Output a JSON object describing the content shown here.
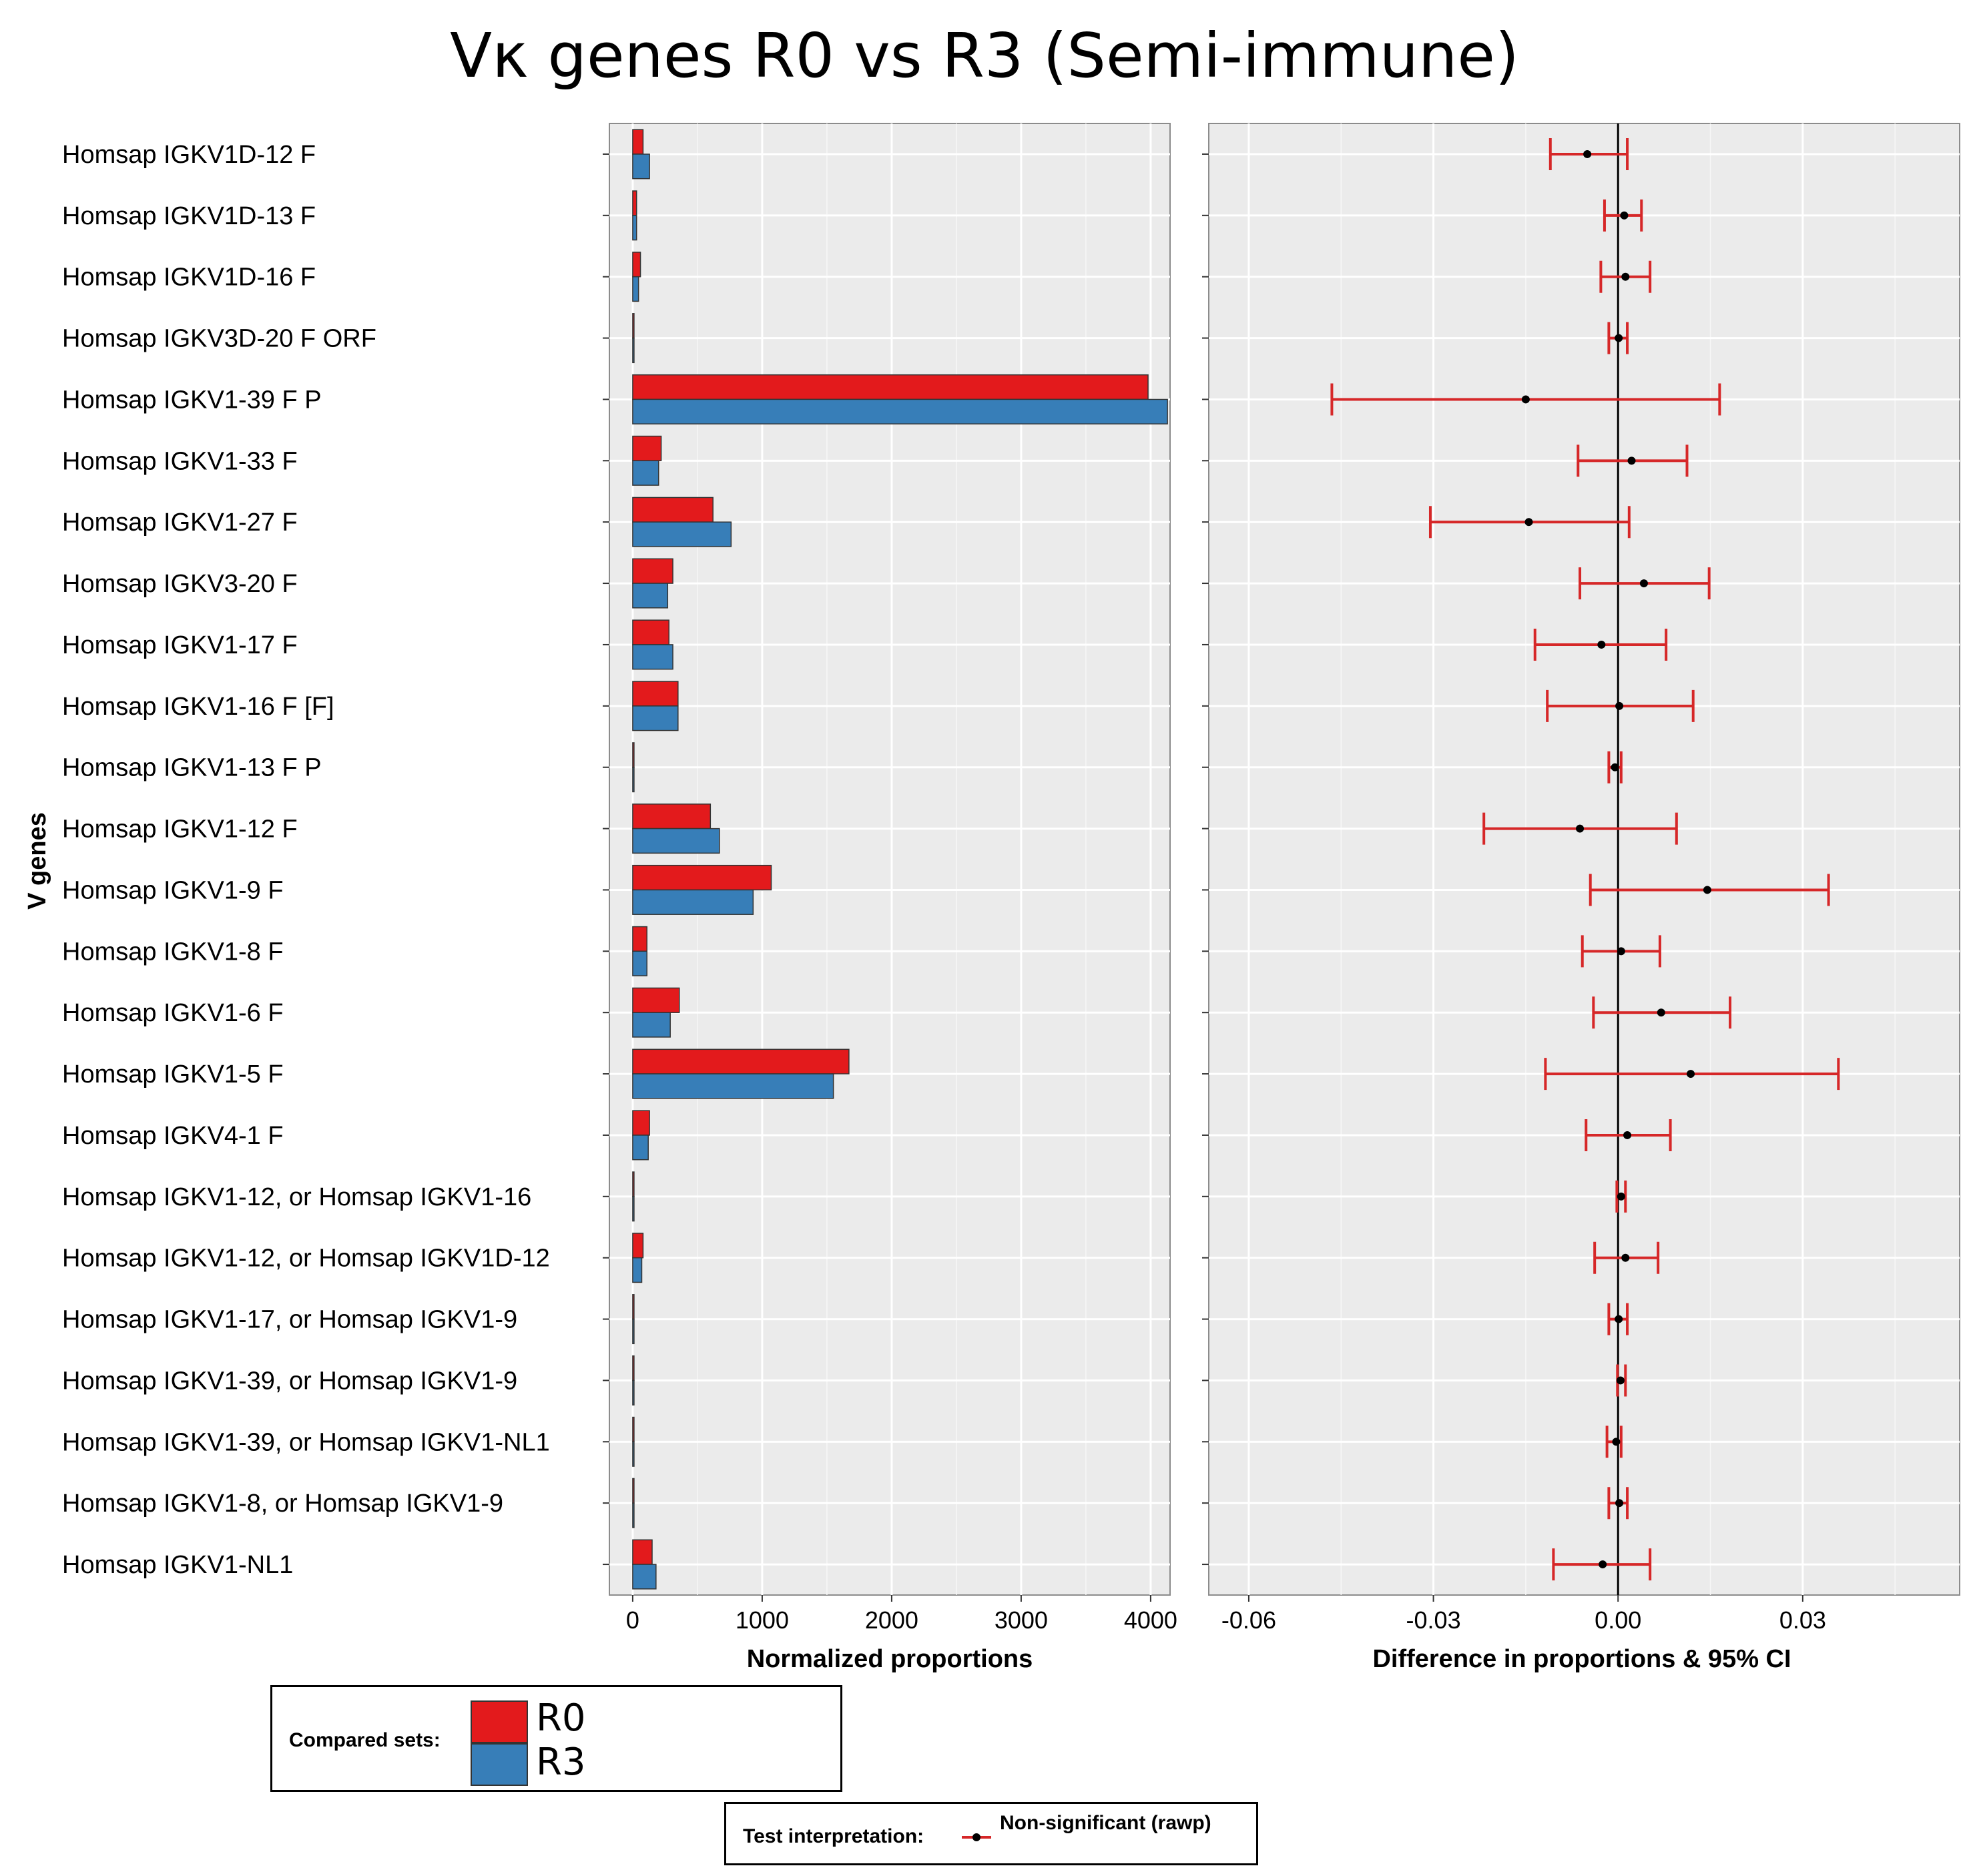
{
  "chart_data": [
    {
      "type": "bar",
      "orientation": "horizontal",
      "title": "Vκ genes R0 vs R3 (Semi-immune)",
      "xlabel": "Normalized proportions",
      "ylabel": "V genes",
      "xlim": [
        -180,
        4150
      ],
      "xticks": [
        "0",
        "1000",
        "2000",
        "3000",
        "4000"
      ],
      "categories": [
        "Homsap IGKV1D-12 F",
        "Homsap IGKV1D-13 F",
        "Homsap IGKV1D-16 F",
        "Homsap IGKV3D-20 F ORF",
        "Homsap IGKV1-39 F P",
        "Homsap IGKV1-33 F",
        "Homsap IGKV1-27 F",
        "Homsap IGKV3-20 F",
        "Homsap IGKV1-17 F",
        "Homsap IGKV1-16 F [F]",
        "Homsap IGKV1-13 F P",
        "Homsap IGKV1-12 F",
        "Homsap IGKV1-9 F",
        "Homsap IGKV1-8 F",
        "Homsap IGKV1-6 F",
        "Homsap IGKV1-5 F",
        "Homsap IGKV4-1 F",
        "Homsap IGKV1-12, or Homsap IGKV1-16",
        "Homsap IGKV1-12, or Homsap IGKV1D-12",
        "Homsap IGKV1-17, or Homsap IGKV1-9",
        "Homsap IGKV1-39, or Homsap IGKV1-9",
        "Homsap IGKV1-39, or Homsap IGKV1-NL1",
        "Homsap IGKV1-8, or Homsap IGKV1-9",
        "Homsap IGKV1-NL1"
      ],
      "series": [
        {
          "name": "R0",
          "color": "#e31a1c",
          "values": [
            80,
            30,
            60,
            8,
            3980,
            220,
            620,
            310,
            280,
            350,
            6,
            600,
            1070,
            110,
            360,
            1670,
            130,
            6,
            80,
            4,
            4,
            6,
            4,
            150
          ]
        },
        {
          "name": "R3",
          "color": "#377eb8",
          "values": [
            130,
            30,
            45,
            8,
            4130,
            200,
            760,
            270,
            310,
            350,
            6,
            670,
            930,
            110,
            290,
            1550,
            120,
            6,
            70,
            4,
            4,
            6,
            4,
            180
          ]
        }
      ]
    },
    {
      "type": "scatter",
      "subtype": "error-bar",
      "xlabel": "Difference in proportions & 95% CI",
      "xlim": [
        -0.0665,
        0.0555
      ],
      "xticks": [
        "-0.06",
        "-0.03",
        "0.00",
        "0.03"
      ],
      "reference_line": 0,
      "series": [
        {
          "name": "Non-significant (rawp)",
          "color": "#d62728",
          "values": [
            -0.005,
            0.001,
            0.0012,
            0.0001,
            -0.015,
            0.0022,
            -0.0145,
            0.0042,
            -0.0027,
            0.0002,
            -0.0005,
            -0.0062,
            0.0145,
            0.0005,
            0.007,
            0.0118,
            0.0015,
            0.0005,
            0.0012,
            0.0001,
            0.0004,
            -0.0003,
            0.0002,
            -0.0025
          ],
          "ci_low": [
            -0.011,
            -0.0022,
            -0.0028,
            -0.0015,
            -0.0465,
            -0.0065,
            -0.0305,
            -0.0062,
            -0.0135,
            -0.0115,
            -0.0015,
            -0.0218,
            -0.0045,
            -0.0058,
            -0.004,
            -0.0118,
            -0.0052,
            -0.0002,
            -0.0038,
            -0.0015,
            -0.0001,
            -0.0018,
            -0.0015,
            -0.0105
          ],
          "ci_high": [
            0.0015,
            0.0038,
            0.0052,
            0.0015,
            0.0165,
            0.0112,
            0.0018,
            0.0148,
            0.0078,
            0.0122,
            0.0005,
            0.0095,
            0.0342,
            0.0068,
            0.0182,
            0.0358,
            0.0085,
            0.0012,
            0.0065,
            0.0015,
            0.0012,
            0.0005,
            0.0015,
            0.0052
          ]
        }
      ]
    }
  ],
  "legend_sets": {
    "title": "Compared sets:",
    "items": [
      "R0",
      "R3"
    ]
  },
  "legend_test": {
    "title": "Test interpretation:",
    "item": "Non-significant (rawp)"
  }
}
